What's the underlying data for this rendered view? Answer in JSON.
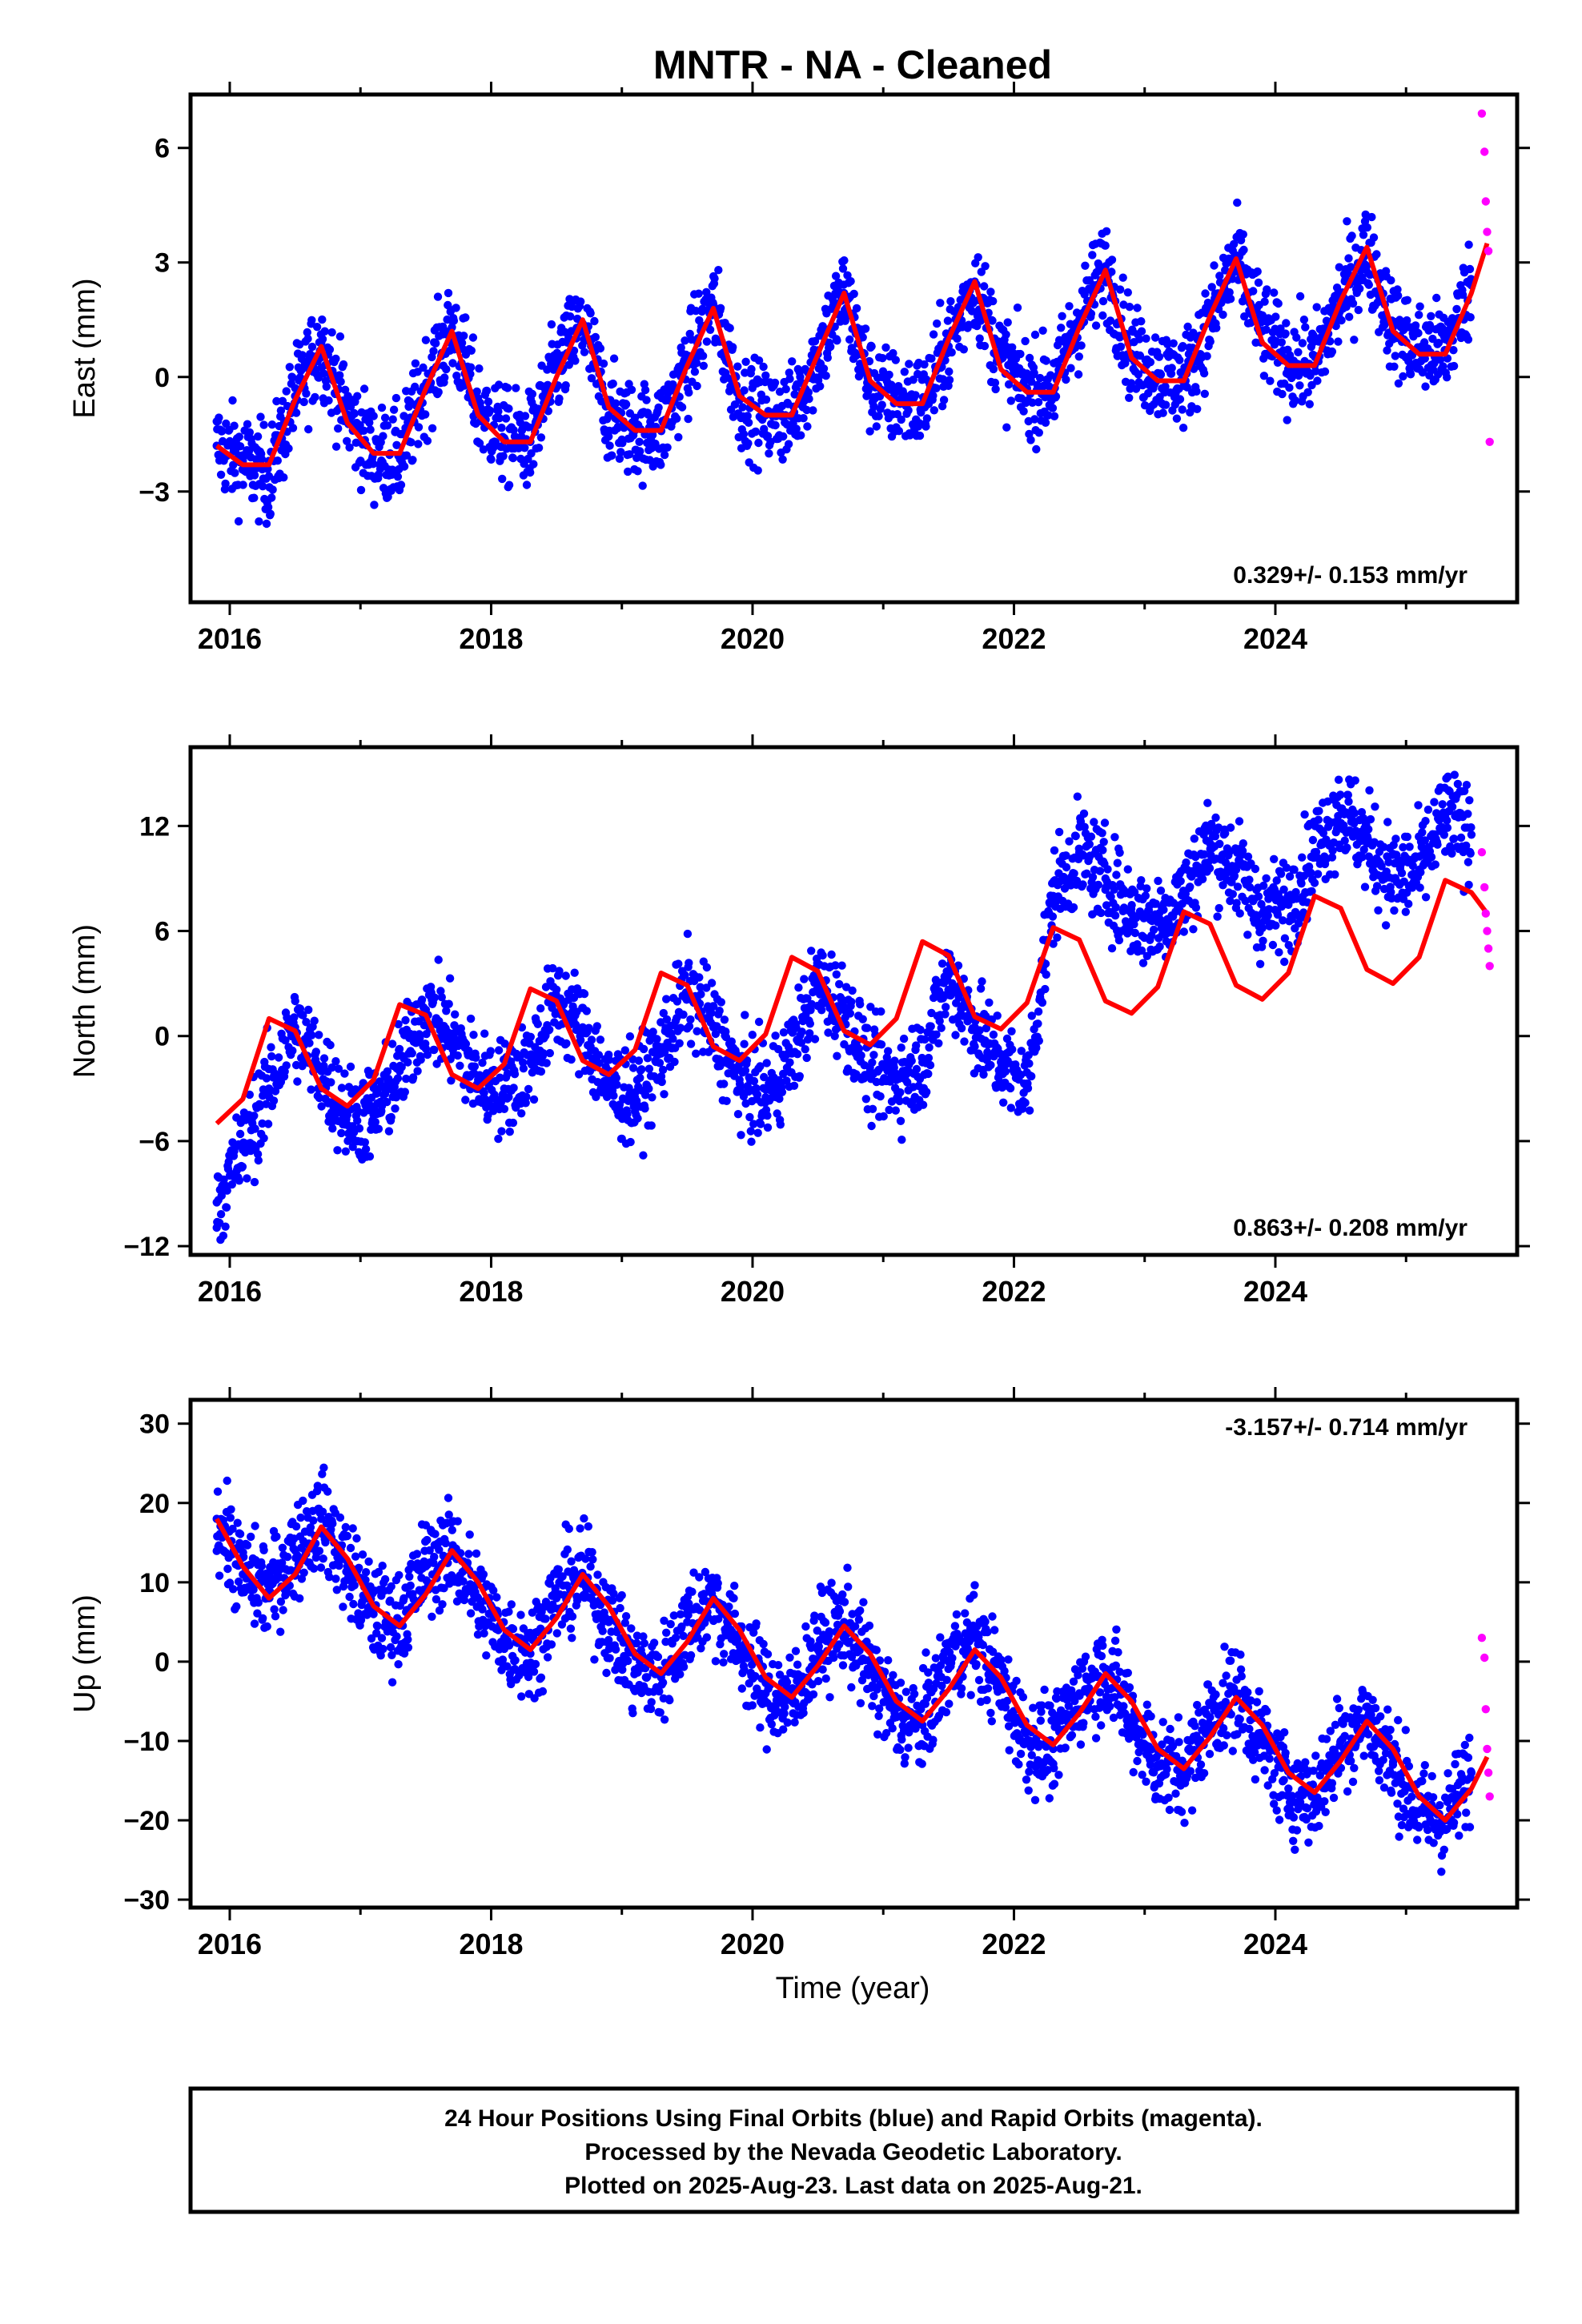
{
  "title": "MNTR  - NA - Cleaned",
  "xlabel": "Time (year)",
  "caption": [
    "24 Hour Positions Using Final Orbits (blue) and Rapid Orbits (magenta).",
    "Processed by the Nevada Geodetic Laboratory.",
    "Plotted on 2025-Aug-23. Last data on 2025-Aug-21."
  ],
  "colors": {
    "final": "#0000ff",
    "rapid": "#ff00ff",
    "model": "#ff0000",
    "frame": "#000000"
  },
  "chart_data": [
    {
      "type": "scatter",
      "panel": "east",
      "ylabel": "East (mm)",
      "rate_label": "0.329+/- 0.153 mm/yr",
      "xlim": [
        2015.7,
        2025.85
      ],
      "ylim": [
        -5.9,
        7.4
      ],
      "xticks": [
        2016,
        2018,
        2020,
        2022,
        2024
      ],
      "yticks": [
        -3,
        0,
        3,
        6
      ],
      "yticklabels": [
        "−3",
        "0",
        "3",
        "6"
      ],
      "series": [
        {
          "role": "final-orbits",
          "x": [
            2015.9,
            2016.1,
            2016.3,
            2016.5,
            2016.7,
            2016.9,
            2017.1,
            2017.3,
            2017.5,
            2017.7,
            2017.9,
            2018.1,
            2018.3,
            2018.5,
            2018.7,
            2018.9,
            2019.1,
            2019.3,
            2019.5,
            2019.7,
            2019.9,
            2020.1,
            2020.3,
            2020.5,
            2020.7,
            2020.9,
            2021.1,
            2021.3,
            2021.5,
            2021.7,
            2021.9,
            2022.1,
            2022.3,
            2022.5,
            2022.7,
            2022.9,
            2023.1,
            2023.3,
            2023.5,
            2023.7,
            2023.9,
            2024.1,
            2024.3,
            2024.5,
            2024.7,
            2024.9,
            2025.1,
            2025.3,
            2025.5
          ],
          "y": [
            -1.8,
            -2.2,
            -2.6,
            -0.5,
            0.9,
            -1.0,
            -2.0,
            -2.1,
            -0.2,
            1.3,
            -0.8,
            -1.6,
            -1.7,
            0.2,
            1.4,
            -1.0,
            -1.4,
            -1.4,
            0.3,
            1.9,
            -0.6,
            -1.0,
            -1.0,
            0.6,
            2.2,
            -0.2,
            -0.6,
            -0.7,
            0.8,
            2.5,
            0.5,
            -0.3,
            -0.3,
            1.5,
            2.9,
            0.6,
            0.1,
            -0.1,
            1.4,
            3.1,
            1.2,
            0.4,
            0.3,
            2.0,
            3.3,
            1.3,
            0.7,
            0.7,
            2.4
          ]
        },
        {
          "role": "rapid-orbits",
          "x": [
            2025.58,
            2025.6,
            2025.61,
            2025.62,
            2025.63,
            2025.64
          ],
          "y": [
            6.9,
            5.9,
            4.6,
            3.8,
            3.3,
            -1.7
          ]
        },
        {
          "role": "model",
          "x": [
            2015.9,
            2016.1,
            2016.3,
            2016.5,
            2016.7,
            2016.9,
            2017.1,
            2017.3,
            2017.5,
            2017.7,
            2017.9,
            2018.1,
            2018.3,
            2018.5,
            2018.7,
            2018.9,
            2019.1,
            2019.3,
            2019.5,
            2019.7,
            2019.9,
            2020.1,
            2020.3,
            2020.5,
            2020.7,
            2020.9,
            2021.1,
            2021.3,
            2021.5,
            2021.7,
            2021.9,
            2022.1,
            2022.3,
            2022.5,
            2022.7,
            2022.9,
            2023.1,
            2023.3,
            2023.5,
            2023.7,
            2023.9,
            2024.1,
            2024.3,
            2024.5,
            2024.7,
            2024.9,
            2025.1,
            2025.3,
            2025.5,
            2025.62
          ],
          "y": [
            -1.8,
            -2.3,
            -2.3,
            -0.6,
            0.8,
            -1.2,
            -2.0,
            -2.0,
            -0.3,
            1.2,
            -1.0,
            -1.7,
            -1.7,
            0.0,
            1.5,
            -0.8,
            -1.4,
            -1.4,
            0.3,
            1.8,
            -0.5,
            -1.0,
            -1.0,
            0.6,
            2.2,
            -0.1,
            -0.7,
            -0.7,
            1.0,
            2.5,
            0.2,
            -0.4,
            -0.4,
            1.3,
            2.8,
            0.5,
            -0.1,
            -0.1,
            1.6,
            3.1,
            0.9,
            0.3,
            0.3,
            2.0,
            3.4,
            1.2,
            0.6,
            0.6,
            2.2,
            3.5
          ]
        }
      ]
    },
    {
      "type": "scatter",
      "panel": "north",
      "ylabel": "North (mm)",
      "rate_label": "0.863+/- 0.208 mm/yr",
      "xlim": [
        2015.7,
        2025.85
      ],
      "ylim": [
        -12.5,
        16.5
      ],
      "xticks": [
        2016,
        2018,
        2020,
        2022,
        2024
      ],
      "yticks": [
        -12,
        -6,
        0,
        6,
        12
      ],
      "yticklabels": [
        "−12",
        "−6",
        "0",
        "6",
        "12"
      ],
      "series": [
        {
          "role": "final-orbits",
          "x": [
            2015.9,
            2016.1,
            2016.3,
            2016.5,
            2016.7,
            2016.9,
            2017.1,
            2017.3,
            2017.5,
            2017.7,
            2017.9,
            2018.1,
            2018.3,
            2018.5,
            2018.7,
            2018.9,
            2019.1,
            2019.3,
            2019.5,
            2019.7,
            2019.9,
            2020.1,
            2020.3,
            2020.5,
            2020.7,
            2020.9,
            2021.1,
            2021.3,
            2021.5,
            2021.7,
            2021.9,
            2022.1,
            2022.3,
            2022.5,
            2022.7,
            2022.9,
            2023.1,
            2023.3,
            2023.5,
            2023.7,
            2023.9,
            2024.1,
            2024.3,
            2024.5,
            2024.7,
            2024.9,
            2025.1,
            2025.3,
            2025.5
          ],
          "y": [
            -9.5,
            -6.5,
            -3.0,
            0.5,
            -2.0,
            -4.5,
            -4.5,
            -2.0,
            1.5,
            0.0,
            -2.5,
            -3.0,
            -1.5,
            2.0,
            0.5,
            -3.0,
            -3.5,
            -1.0,
            2.5,
            0.5,
            -2.5,
            -3.5,
            -1.0,
            3.0,
            1.5,
            -2.0,
            -2.5,
            -1.5,
            3.5,
            0.5,
            -1.5,
            -3.0,
            8.0,
            10.5,
            9.0,
            7.0,
            6.5,
            8.0,
            11.0,
            9.5,
            7.0,
            7.5,
            10.5,
            13.0,
            11.0,
            9.0,
            9.5,
            12.5,
            11.5
          ]
        },
        {
          "role": "rapid-orbits",
          "x": [
            2025.58,
            2025.6,
            2025.61,
            2025.62,
            2025.63,
            2025.64
          ],
          "y": [
            10.5,
            8.5,
            7.0,
            6.0,
            5.0,
            4.0
          ]
        },
        {
          "role": "model",
          "x": [
            2015.9,
            2016.1,
            2016.3,
            2016.5,
            2016.7,
            2016.9,
            2017.1,
            2017.3,
            2017.5,
            2017.7,
            2017.9,
            2018.1,
            2018.3,
            2018.5,
            2018.7,
            2018.9,
            2019.1,
            2019.3,
            2019.5,
            2019.7,
            2019.9,
            2020.1,
            2020.3,
            2020.5,
            2020.7,
            2020.9,
            2021.1,
            2021.3,
            2021.5,
            2021.7,
            2021.9,
            2022.1,
            2022.3,
            2022.5,
            2022.7,
            2022.9,
            2023.1,
            2023.3,
            2023.5,
            2023.7,
            2023.9,
            2024.1,
            2024.3,
            2024.5,
            2024.7,
            2024.9,
            2025.1,
            2025.3,
            2025.5,
            2025.62
          ],
          "y": [
            -5.0,
            -3.6,
            1.0,
            0.3,
            -3.0,
            -4.0,
            -2.5,
            1.8,
            1.2,
            -2.2,
            -3.0,
            -1.6,
            2.7,
            2.0,
            -1.4,
            -2.2,
            -0.8,
            3.6,
            2.9,
            -0.6,
            -1.4,
            0.1,
            4.5,
            3.7,
            0.3,
            -0.5,
            1.0,
            5.4,
            4.6,
            1.1,
            0.4,
            1.9,
            6.2,
            5.5,
            2.0,
            1.3,
            2.8,
            7.1,
            6.4,
            2.9,
            2.1,
            3.6,
            8.0,
            7.3,
            3.8,
            3.0,
            4.5,
            8.9,
            8.2,
            7.0
          ]
        }
      ]
    },
    {
      "type": "scatter",
      "panel": "up",
      "ylabel": "Up (mm)",
      "rate_label": "-3.157+/- 0.714 mm/yr",
      "xlim": [
        2015.7,
        2025.85
      ],
      "ylim": [
        -31,
        33
      ],
      "xticks": [
        2016,
        2018,
        2020,
        2022,
        2024
      ],
      "yticks": [
        -30,
        -20,
        -10,
        0,
        10,
        20,
        30
      ],
      "yticklabels": [
        "−30",
        "−20",
        "−10",
        "0",
        "10",
        "20",
        "30"
      ],
      "series": [
        {
          "role": "final-orbits",
          "x": [
            2015.9,
            2016.1,
            2016.3,
            2016.5,
            2016.7,
            2016.9,
            2017.1,
            2017.3,
            2017.5,
            2017.7,
            2017.9,
            2018.1,
            2018.3,
            2018.5,
            2018.7,
            2018.9,
            2019.1,
            2019.3,
            2019.5,
            2019.7,
            2019.9,
            2020.1,
            2020.3,
            2020.5,
            2020.7,
            2020.9,
            2021.1,
            2021.3,
            2021.5,
            2021.7,
            2021.9,
            2022.1,
            2022.3,
            2022.5,
            2022.7,
            2022.9,
            2023.1,
            2023.3,
            2023.5,
            2023.7,
            2023.9,
            2024.1,
            2024.3,
            2024.5,
            2024.7,
            2024.9,
            2025.1,
            2025.3,
            2025.5
          ],
          "y": [
            18.0,
            11.0,
            9.0,
            14.0,
            18.0,
            12.0,
            6.0,
            5.0,
            12.0,
            14.0,
            8.0,
            3.0,
            1.0,
            8.0,
            11.0,
            5.0,
            -1.0,
            -2.0,
            5.0,
            8.0,
            2.0,
            -4.0,
            -5.0,
            2.0,
            5.0,
            -1.0,
            -7.0,
            -8.0,
            0.0,
            3.0,
            -3.0,
            -10.0,
            -11.0,
            -4.0,
            -1.0,
            -7.0,
            -13.0,
            -14.0,
            -7.0,
            -4.0,
            -10.0,
            -16.0,
            -17.0,
            -10.0,
            -7.0,
            -13.0,
            -19.0,
            -20.0,
            -14.0
          ]
        },
        {
          "role": "rapid-orbits",
          "x": [
            2025.58,
            2025.6,
            2025.61,
            2025.62,
            2025.63,
            2025.64
          ],
          "y": [
            3.0,
            0.5,
            -6.0,
            -11.0,
            -14.0,
            -17.0
          ]
        },
        {
          "role": "model",
          "x": [
            2015.9,
            2016.1,
            2016.3,
            2016.5,
            2016.7,
            2016.9,
            2017.1,
            2017.3,
            2017.5,
            2017.7,
            2017.9,
            2018.1,
            2018.3,
            2018.5,
            2018.7,
            2018.9,
            2019.1,
            2019.3,
            2019.5,
            2019.7,
            2019.9,
            2020.1,
            2020.3,
            2020.5,
            2020.7,
            2020.9,
            2021.1,
            2021.3,
            2021.5,
            2021.7,
            2021.9,
            2022.1,
            2022.3,
            2022.5,
            2022.7,
            2022.9,
            2023.1,
            2023.3,
            2023.5,
            2023.7,
            2023.9,
            2024.1,
            2024.3,
            2024.5,
            2024.7,
            2024.9,
            2025.1,
            2025.3,
            2025.5,
            2025.62
          ],
          "y": [
            18.0,
            12.0,
            8.0,
            11.0,
            17.0,
            13.0,
            7.0,
            4.5,
            8.5,
            14.0,
            10.0,
            4.0,
            1.5,
            5.5,
            11.0,
            7.0,
            1.0,
            -1.5,
            2.5,
            8.0,
            4.0,
            -2.0,
            -4.5,
            -0.5,
            4.5,
            1.0,
            -5.0,
            -7.5,
            -3.5,
            1.5,
            -2.0,
            -8.0,
            -10.5,
            -6.5,
            -1.5,
            -5.0,
            -11.0,
            -13.5,
            -9.5,
            -4.5,
            -8.0,
            -14.0,
            -16.5,
            -12.5,
            -7.5,
            -11.0,
            -17.0,
            -20.0,
            -16.0,
            -12.0
          ]
        }
      ]
    }
  ]
}
